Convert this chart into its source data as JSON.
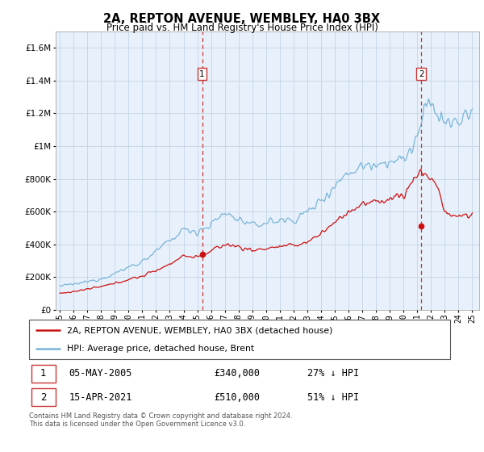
{
  "title": "2A, REPTON AVENUE, WEMBLEY, HA0 3BX",
  "subtitle": "Price paid vs. HM Land Registry's House Price Index (HPI)",
  "bg_color": "#e8f1fb",
  "grid_color": "#c8d8e8",
  "hpi_color": "#7ab4d8",
  "price_color": "#cc1111",
  "sale1_year": 2005.35,
  "sale1_price": 340000,
  "sale2_year": 2021.29,
  "sale2_price": 510000,
  "legend_line1": "2A, REPTON AVENUE, WEMBLEY, HA0 3BX (detached house)",
  "legend_line2": "HPI: Average price, detached house, Brent",
  "ylim_max": 1700000,
  "xlim_start": 1994.7,
  "xlim_end": 2025.5,
  "footnote1": "Contains HM Land Registry data © Crown copyright and database right 2024.",
  "footnote2": "This data is licensed under the Open Government Licence v3.0."
}
